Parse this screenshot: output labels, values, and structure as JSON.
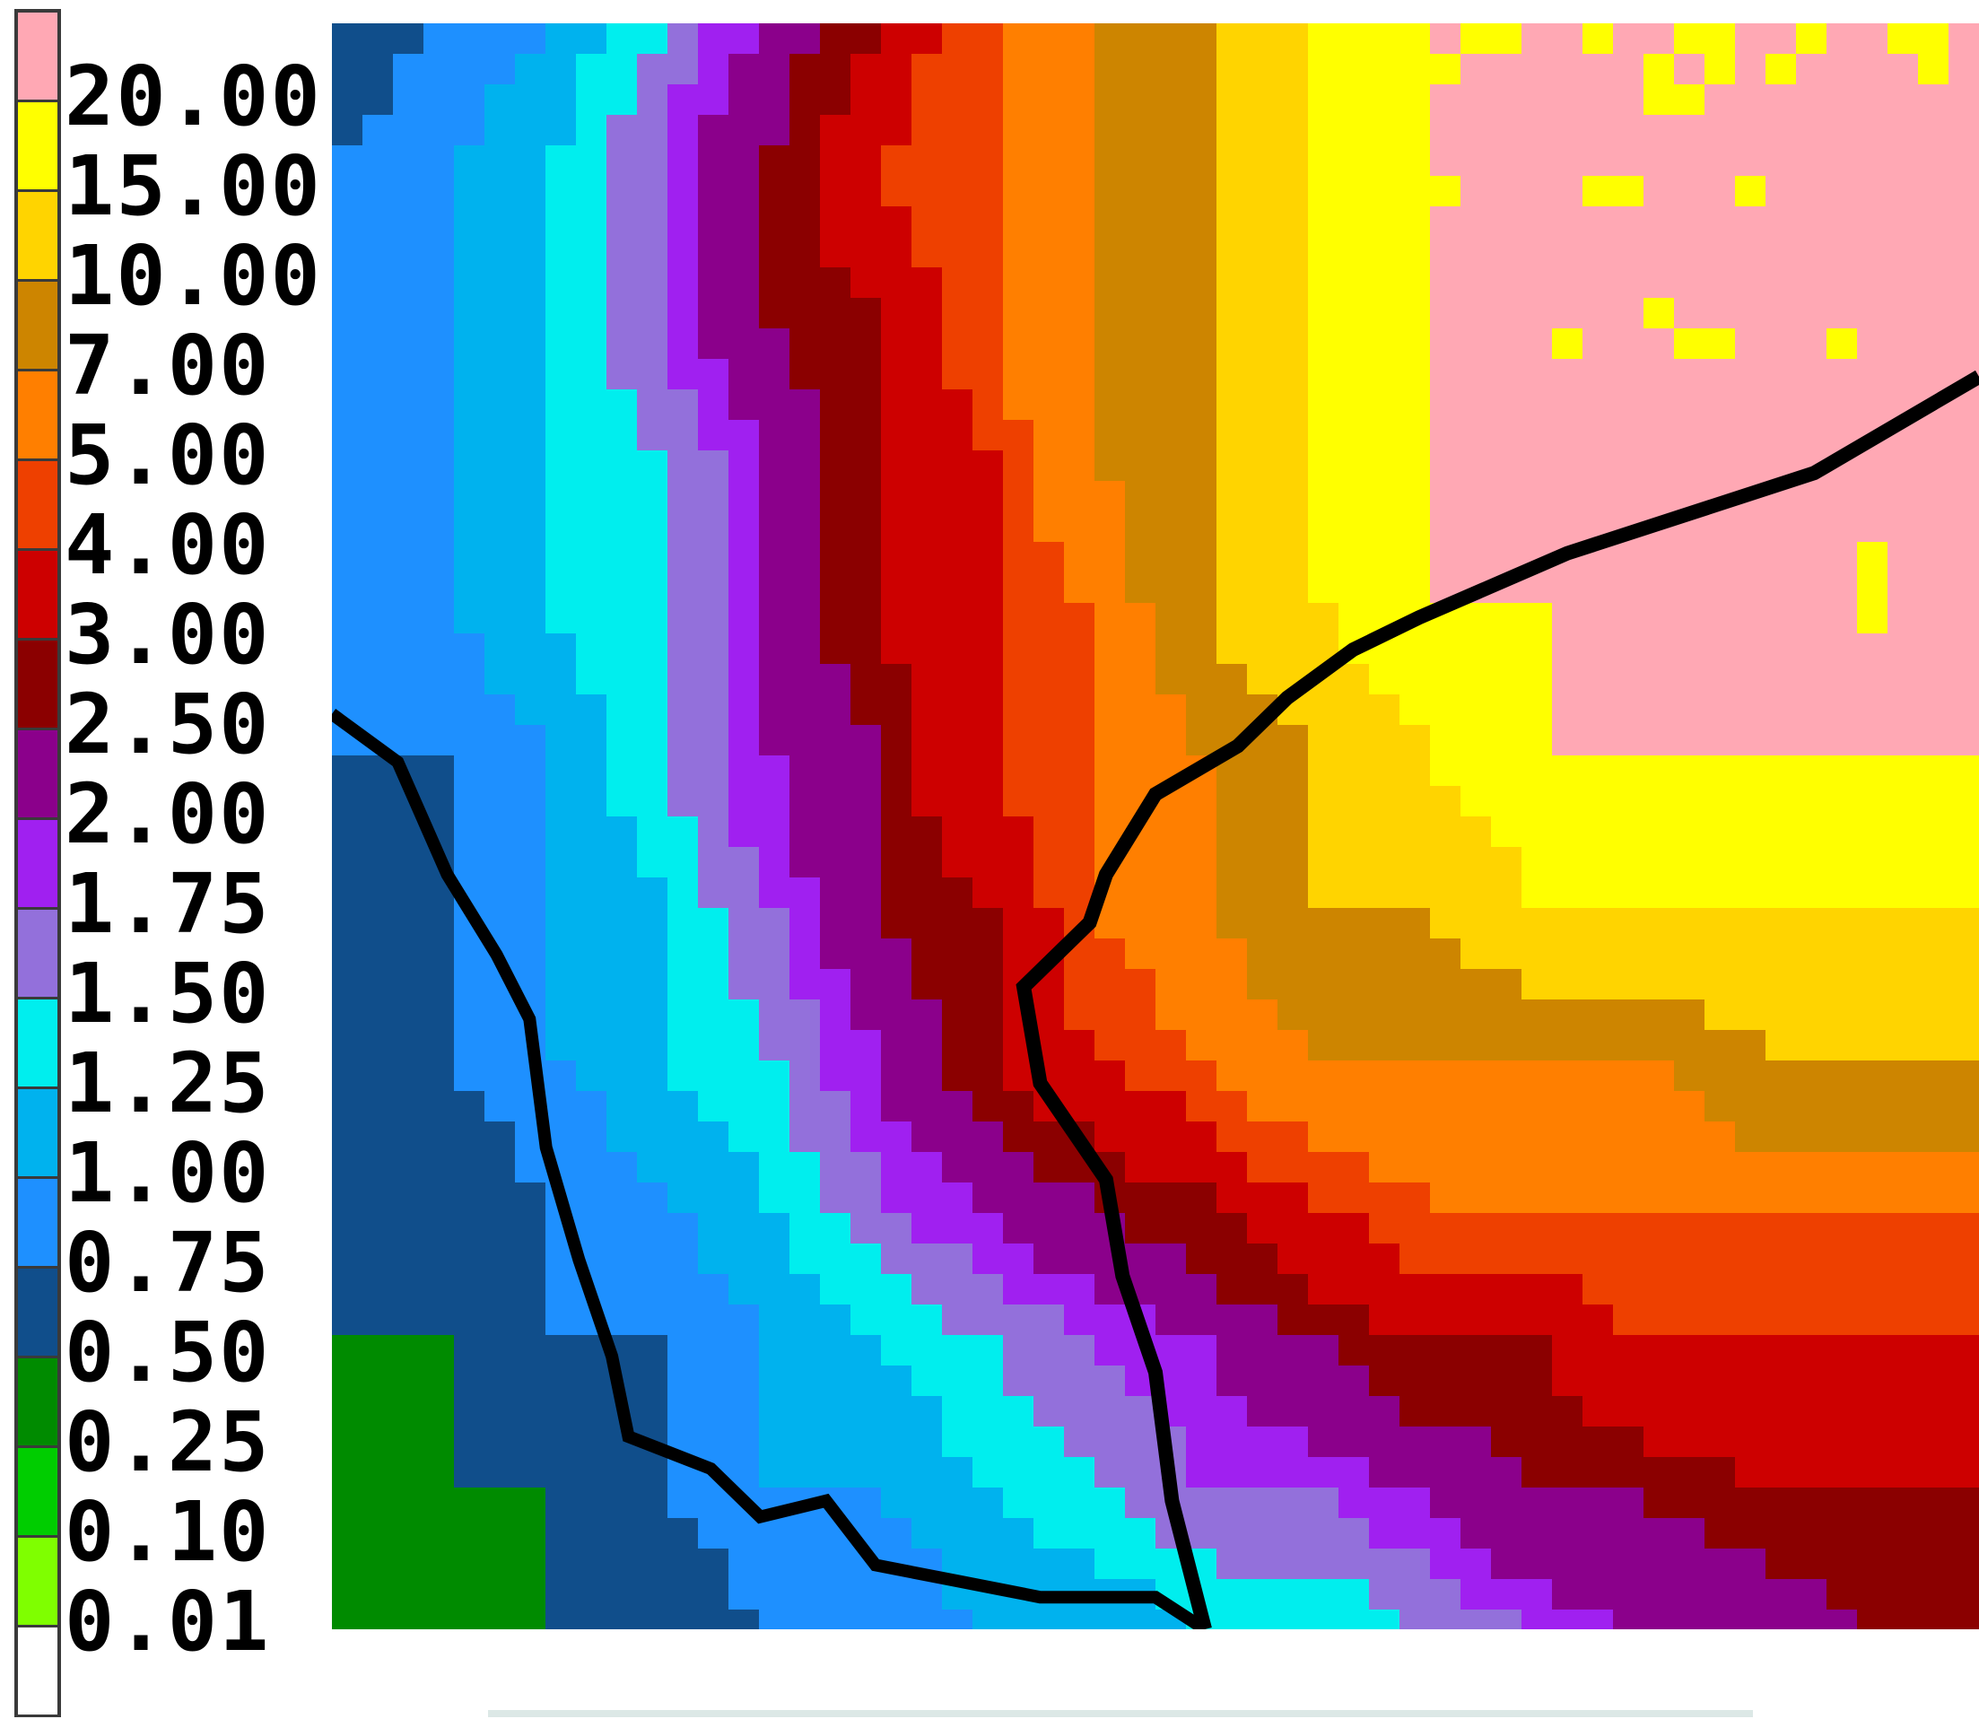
{
  "chart_data": {
    "type": "heatmap",
    "title": "",
    "xlabel": "",
    "ylabel": "",
    "colorbar": {
      "placement": "left",
      "levels": [
        {
          "label": "20.00",
          "value": 20.0,
          "color": "#ffa8b4"
        },
        {
          "label": "15.00",
          "value": 15.0,
          "color": "#ffff00"
        },
        {
          "label": "10.00",
          "value": 10.0,
          "color": "#ffd400"
        },
        {
          "label": "7.00",
          "value": 7.0,
          "color": "#cd8500"
        },
        {
          "label": "5.00",
          "value": 5.0,
          "color": "#ff7f00"
        },
        {
          "label": "4.00",
          "value": 4.0,
          "color": "#ee4000"
        },
        {
          "label": "3.00",
          "value": 3.0,
          "color": "#cd0000"
        },
        {
          "label": "2.50",
          "value": 2.5,
          "color": "#8b0000"
        },
        {
          "label": "2.00",
          "value": 2.0,
          "color": "#8b008b"
        },
        {
          "label": "1.75",
          "value": 1.75,
          "color": "#a020f0"
        },
        {
          "label": "1.50",
          "value": 1.5,
          "color": "#9370db"
        },
        {
          "label": "1.25",
          "value": 1.25,
          "color": "#00eeee"
        },
        {
          "label": "1.00",
          "value": 1.0,
          "color": "#00b2ee"
        },
        {
          "label": "0.75",
          "value": 0.75,
          "color": "#1e90ff"
        },
        {
          "label": "0.50",
          "value": 0.5,
          "color": "#104e8b"
        },
        {
          "label": "0.25",
          "value": 0.25,
          "color": "#008b00"
        },
        {
          "label": "0.10",
          "value": 0.1,
          "color": "#00cd00"
        },
        {
          "label": "0.01",
          "value": 0.01,
          "color": "#7fff00"
        },
        {
          "label": "",
          "value": 0.0,
          "color": "#ffffff"
        }
      ]
    },
    "field": {
      "description_of_pattern": "concentric bands of decreasing value radiating from a maximum (>20) near the upper-right corner toward the lower-left corner; a second yellow/orange lobe extends toward the right edge; a dark contour line separates bands",
      "grid": [
        [
          0.5,
          0.75,
          1.0,
          1.5,
          2.0,
          3.0,
          5.0,
          7.0,
          10.0,
          15.0,
          20.0,
          20.0,
          20.0,
          20.0,
          20.0,
          20.0
        ],
        [
          0.75,
          1.0,
          1.25,
          1.75,
          2.5,
          4.0,
          5.0,
          7.0,
          10.0,
          15.0,
          20.0,
          20.0,
          20.0,
          20.0,
          20.0,
          20.0
        ],
        [
          0.75,
          1.0,
          1.25,
          1.75,
          2.5,
          3.0,
          5.0,
          7.0,
          10.0,
          15.0,
          20.0,
          20.0,
          20.0,
          20.0,
          20.0,
          20.0
        ],
        [
          0.75,
          1.0,
          1.25,
          1.5,
          2.0,
          3.0,
          4.0,
          7.0,
          10.0,
          15.0,
          20.0,
          20.0,
          20.0,
          20.0,
          20.0,
          20.0
        ],
        [
          0.75,
          1.0,
          1.25,
          1.5,
          2.0,
          3.0,
          4.0,
          5.0,
          10.0,
          15.0,
          20.0,
          20.0,
          20.0,
          20.0,
          20.0,
          20.0
        ],
        [
          0.75,
          0.75,
          1.0,
          1.5,
          2.0,
          2.5,
          4.0,
          5.0,
          7.0,
          10.0,
          15.0,
          20.0,
          20.0,
          20.0,
          20.0,
          20.0
        ],
        [
          0.5,
          0.75,
          1.0,
          1.25,
          1.75,
          2.5,
          3.0,
          5.0,
          7.0,
          10.0,
          10.0,
          15.0,
          15.0,
          15.0,
          15.0,
          15.0
        ],
        [
          0.5,
          0.75,
          1.0,
          1.25,
          1.5,
          2.0,
          3.0,
          4.0,
          5.0,
          7.0,
          7.0,
          7.0,
          7.0,
          10.0,
          10.0,
          10.0
        ],
        [
          0.5,
          0.5,
          0.75,
          1.0,
          1.25,
          1.75,
          2.0,
          2.5,
          3.0,
          4.0,
          5.0,
          5.0,
          5.0,
          5.0,
          5.0,
          5.0
        ],
        [
          0.5,
          0.5,
          0.75,
          0.75,
          1.0,
          1.25,
          1.5,
          1.75,
          2.0,
          2.5,
          3.0,
          3.0,
          4.0,
          4.0,
          4.0,
          4.0
        ],
        [
          0.25,
          0.5,
          0.5,
          0.75,
          1.0,
          1.0,
          1.25,
          1.5,
          1.75,
          1.75,
          2.0,
          2.5,
          2.5,
          3.0,
          3.0,
          3.0
        ],
        [
          0.25,
          0.25,
          0.5,
          0.5,
          0.75,
          0.75,
          1.0,
          1.0,
          1.25,
          1.25,
          1.5,
          1.75,
          2.0,
          2.0,
          2.5,
          2.5
        ]
      ]
    }
  }
}
